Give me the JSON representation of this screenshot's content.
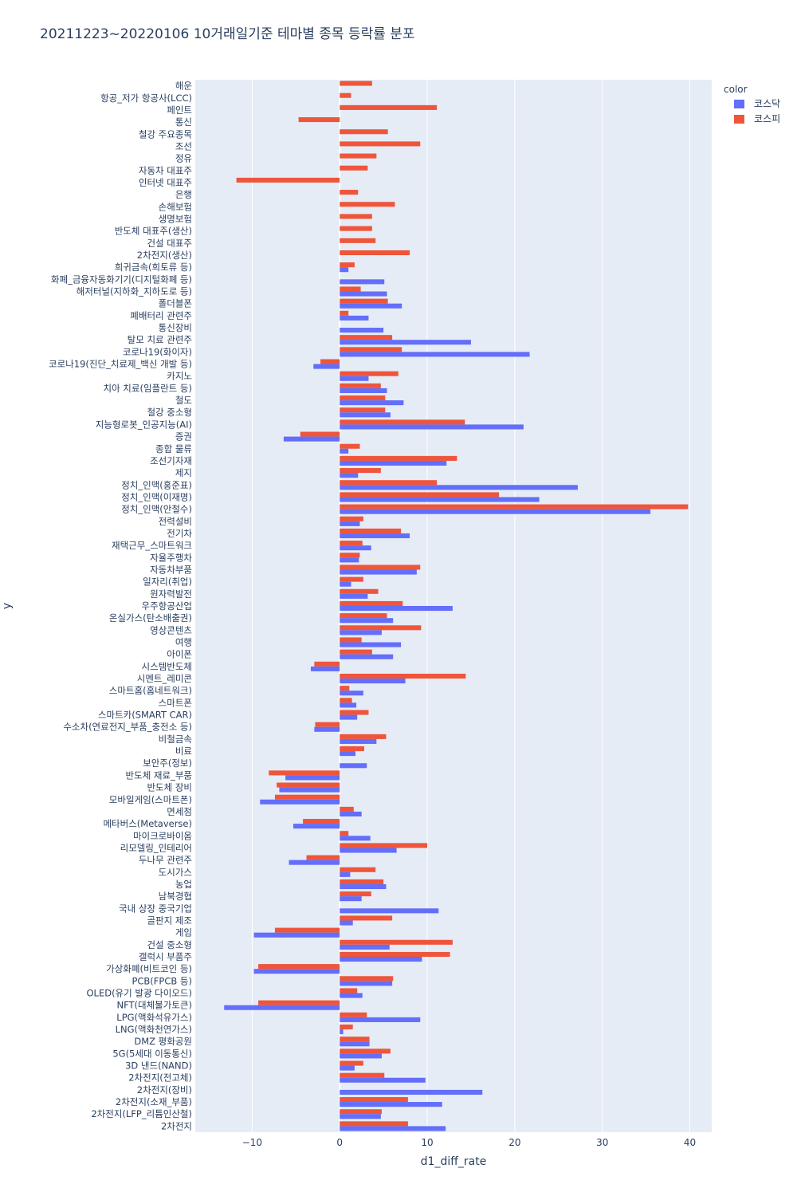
{
  "chart_data": {
    "type": "bar",
    "orientation": "horizontal",
    "barmode": "group",
    "title": "20211223~20220106 10거래일기준 테마별 종목 등락률 분포",
    "xlabel": "d1_diff_rate",
    "ylabel": "y",
    "xlim": [
      -16.5,
      42.5
    ],
    "xticks": [
      -10,
      0,
      10,
      20,
      30,
      40
    ],
    "legend_title": "color",
    "legend_position": "top-right",
    "series": [
      {
        "name": "코스닥",
        "color": "#636efa"
      },
      {
        "name": "코스피",
        "color": "#ef553b"
      }
    ],
    "categories": [
      {
        "label": "해운",
        "kosdaq": null,
        "kospi": 3.7
      },
      {
        "label": "항공_저가 항공사(LCC)",
        "kosdaq": null,
        "kospi": 1.3
      },
      {
        "label": "페인트",
        "kosdaq": null,
        "kospi": 11.1
      },
      {
        "label": "통신",
        "kosdaq": null,
        "kospi": -4.7
      },
      {
        "label": "철강 주요종목",
        "kosdaq": null,
        "kospi": 5.5
      },
      {
        "label": "조선",
        "kosdaq": null,
        "kospi": 9.2
      },
      {
        "label": "정유",
        "kosdaq": null,
        "kospi": 4.2
      },
      {
        "label": "자동차 대표주",
        "kosdaq": null,
        "kospi": 3.2
      },
      {
        "label": "인터넷 대표주",
        "kosdaq": null,
        "kospi": -11.8
      },
      {
        "label": "은행",
        "kosdaq": null,
        "kospi": 2.1
      },
      {
        "label": "손해보험",
        "kosdaq": null,
        "kospi": 6.3
      },
      {
        "label": "생명보험",
        "kosdaq": null,
        "kospi": 3.7
      },
      {
        "label": "반도체 대표주(생산)",
        "kosdaq": null,
        "kospi": 3.7
      },
      {
        "label": "건설 대표주",
        "kosdaq": null,
        "kospi": 4.1
      },
      {
        "label": "2차전지(생산)",
        "kosdaq": null,
        "kospi": 8.0
      },
      {
        "label": "희귀금속(희토류 등)",
        "kosdaq": 1.0,
        "kospi": 1.7
      },
      {
        "label": "화폐_금융자동화기기(디지털화폐 등)",
        "kosdaq": 5.1,
        "kospi": null
      },
      {
        "label": "해저터널(지하화_지하도로 등)",
        "kosdaq": 5.4,
        "kospi": 2.4
      },
      {
        "label": "폴더블폰",
        "kosdaq": 7.1,
        "kospi": 5.5
      },
      {
        "label": "폐배터리 관련주",
        "kosdaq": 3.3,
        "kospi": 1.0
      },
      {
        "label": "통신장비",
        "kosdaq": 5.0,
        "kospi": null
      },
      {
        "label": "탈모 치료 관련주",
        "kosdaq": 15.0,
        "kospi": 6.0
      },
      {
        "label": "코로나19(화이자)",
        "kosdaq": 21.7,
        "kospi": 7.1
      },
      {
        "label": "코로나19(진단_치료제_백신 개발 등)",
        "kosdaq": -3.0,
        "kospi": -2.2
      },
      {
        "label": "카지노",
        "kosdaq": 3.3,
        "kospi": 6.7
      },
      {
        "label": "치아 치료(임플란트 등)",
        "kosdaq": 5.4,
        "kospi": 4.7
      },
      {
        "label": "철도",
        "kosdaq": 7.3,
        "kospi": 5.2
      },
      {
        "label": "철강 중소형",
        "kosdaq": 5.8,
        "kospi": 5.2
      },
      {
        "label": "지능형로봇_인공지능(AI)",
        "kosdaq": 21.0,
        "kospi": 14.3
      },
      {
        "label": "증권",
        "kosdaq": -6.4,
        "kospi": -4.5
      },
      {
        "label": "종합 물류",
        "kosdaq": 1.0,
        "kospi": 2.3
      },
      {
        "label": "조선기자재",
        "kosdaq": 12.2,
        "kospi": 13.4
      },
      {
        "label": "제지",
        "kosdaq": 2.1,
        "kospi": 4.7
      },
      {
        "label": "정치_인맥(홍준표)",
        "kosdaq": 27.2,
        "kospi": 11.1
      },
      {
        "label": "정치_인맥(이재명)",
        "kosdaq": 22.8,
        "kospi": 18.2
      },
      {
        "label": "정치_인맥(안철수)",
        "kosdaq": 35.5,
        "kospi": 39.8
      },
      {
        "label": "전력설비",
        "kosdaq": 2.3,
        "kospi": 2.7
      },
      {
        "label": "전기차",
        "kosdaq": 8.0,
        "kospi": 7.0
      },
      {
        "label": "재택근무_스마트워크",
        "kosdaq": 3.6,
        "kospi": 2.6
      },
      {
        "label": "자율주행차",
        "kosdaq": 2.2,
        "kospi": 2.3
      },
      {
        "label": "자동차부품",
        "kosdaq": 8.8,
        "kospi": 9.2
      },
      {
        "label": "일자리(취업)",
        "kosdaq": 1.3,
        "kospi": 2.7
      },
      {
        "label": "원자력발전",
        "kosdaq": 3.2,
        "kospi": 4.4
      },
      {
        "label": "우주항공산업",
        "kosdaq": 12.9,
        "kospi": 7.2
      },
      {
        "label": "온실가스(탄소배출권)",
        "kosdaq": 6.1,
        "kospi": 5.4
      },
      {
        "label": "영상콘텐츠",
        "kosdaq": 4.8,
        "kospi": 9.3
      },
      {
        "label": "여행",
        "kosdaq": 7.0,
        "kospi": 2.5
      },
      {
        "label": "아이폰",
        "kosdaq": 6.1,
        "kospi": 3.7
      },
      {
        "label": "시스템반도체",
        "kosdaq": -3.3,
        "kospi": -2.9
      },
      {
        "label": "시멘트_레미콘",
        "kosdaq": 7.5,
        "kospi": 14.4
      },
      {
        "label": "스마트홈(홈네트워크)",
        "kosdaq": 2.7,
        "kospi": 1.1
      },
      {
        "label": "스마트폰",
        "kosdaq": 1.9,
        "kospi": 1.4
      },
      {
        "label": "스마트카(SMART CAR)",
        "kosdaq": 2.0,
        "kospi": 3.3
      },
      {
        "label": "수소차(연료전지_부품_충전소 등)",
        "kosdaq": -2.9,
        "kospi": -2.8
      },
      {
        "label": "비철금속",
        "kosdaq": 4.2,
        "kospi": 5.3
      },
      {
        "label": "비료",
        "kosdaq": 1.8,
        "kospi": 2.8
      },
      {
        "label": "보안주(정보)",
        "kosdaq": 3.1,
        "kospi": null
      },
      {
        "label": "반도체 재료_부품",
        "kosdaq": -6.2,
        "kospi": -8.1
      },
      {
        "label": "반도체 장비",
        "kosdaq": -6.9,
        "kospi": -7.2
      },
      {
        "label": "모바일게임(스마트폰)",
        "kosdaq": -9.1,
        "kospi": -7.4
      },
      {
        "label": "면세점",
        "kosdaq": 2.5,
        "kospi": 1.6
      },
      {
        "label": "메타버스(Metaverse)",
        "kosdaq": -5.3,
        "kospi": -4.2
      },
      {
        "label": "마이크로바이옴",
        "kosdaq": 3.5,
        "kospi": 1.0
      },
      {
        "label": "리모델링_인테리어",
        "kosdaq": 6.5,
        "kospi": 10.0
      },
      {
        "label": "두나무 관련주",
        "kosdaq": -5.8,
        "kospi": -3.8
      },
      {
        "label": "도시가스",
        "kosdaq": 1.2,
        "kospi": 4.1
      },
      {
        "label": "농업",
        "kosdaq": 5.3,
        "kospi": 5.0
      },
      {
        "label": "남북경협",
        "kosdaq": 2.5,
        "kospi": 3.6
      },
      {
        "label": "국내 상장 중국기업",
        "kosdaq": 11.3,
        "kospi": null
      },
      {
        "label": "골판지 제조",
        "kosdaq": 1.5,
        "kospi": 6.0
      },
      {
        "label": "게임",
        "kosdaq": -9.8,
        "kospi": -7.4
      },
      {
        "label": "건설 중소형",
        "kosdaq": 5.7,
        "kospi": 12.9
      },
      {
        "label": "갤럭시 부품주",
        "kosdaq": 9.4,
        "kospi": 12.6
      },
      {
        "label": "가상화폐(비트코인 등)",
        "kosdaq": -9.8,
        "kospi": -9.3
      },
      {
        "label": "PCB(FPCB 등)",
        "kosdaq": 6.0,
        "kospi": 6.1
      },
      {
        "label": "OLED(유기 발광 다이오드)",
        "kosdaq": 2.6,
        "kospi": 2.0
      },
      {
        "label": "NFT(대체불가토큰)",
        "kosdaq": -13.2,
        "kospi": -9.3
      },
      {
        "label": "LPG(액화석유가스)",
        "kosdaq": 9.2,
        "kospi": 3.1
      },
      {
        "label": "LNG(액화천연가스)",
        "kosdaq": 0.4,
        "kospi": 1.5
      },
      {
        "label": "DMZ 평화공원",
        "kosdaq": 3.4,
        "kospi": 3.4
      },
      {
        "label": "5G(5세대 이동통신)",
        "kosdaq": 4.8,
        "kospi": 5.8
      },
      {
        "label": "3D 낸드(NAND)",
        "kosdaq": 1.7,
        "kospi": 2.7
      },
      {
        "label": "2차전지(전고체)",
        "kosdaq": 9.8,
        "kospi": 5.1
      },
      {
        "label": "2차전지(장비)",
        "kosdaq": 16.3,
        "kospi": null
      },
      {
        "label": "2차전지(소재_부품)",
        "kosdaq": 11.7,
        "kospi": 7.8
      },
      {
        "label": "2차전지(LFP_리튬인산철)",
        "kosdaq": 4.7,
        "kospi": 4.8
      },
      {
        "label": "2차전지",
        "kosdaq": 12.1,
        "kospi": 7.8
      }
    ]
  }
}
